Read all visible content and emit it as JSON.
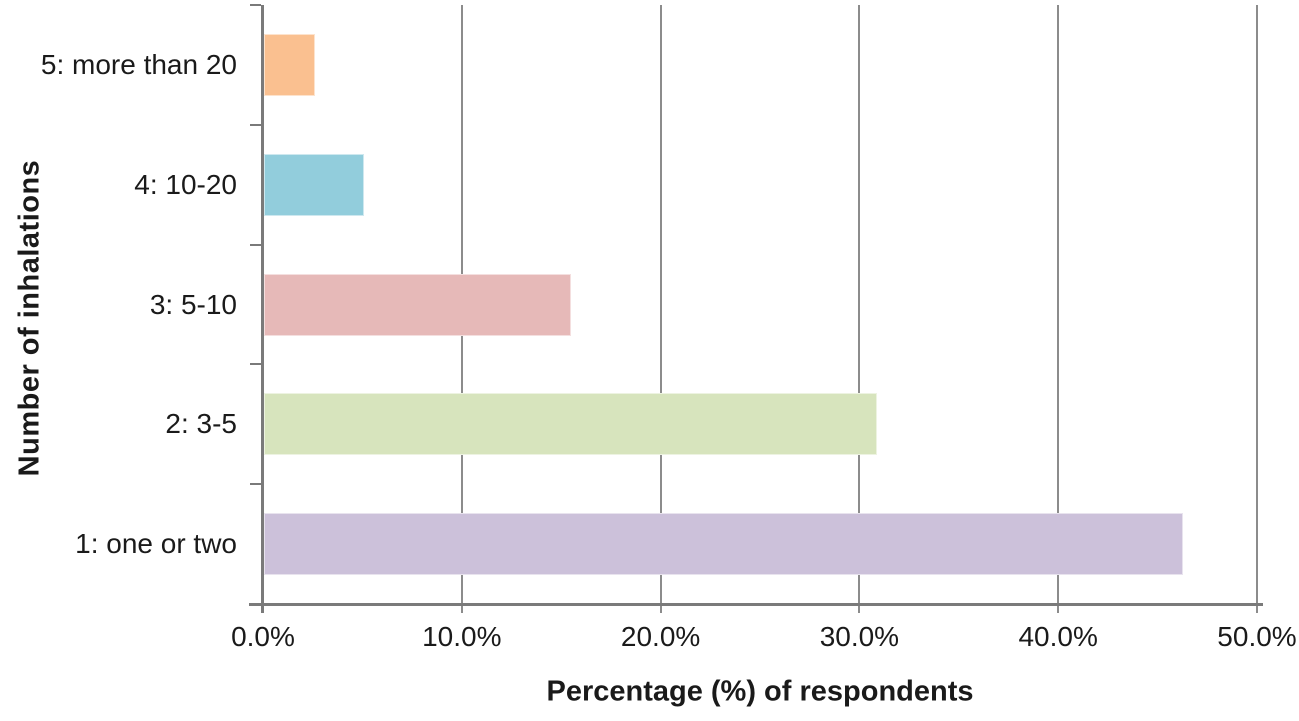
{
  "chart_data": {
    "type": "bar",
    "orientation": "horizontal",
    "title": "",
    "xlabel": "Percentage (%) of respondents",
    "ylabel": "Number of inhalations",
    "categories": [
      "5: more than 20",
      "4: 10-20",
      "3: 5-10",
      "2: 3-5",
      "1: one or two"
    ],
    "values": [
      2.6,
      5.1,
      15.5,
      30.9,
      46.3
    ],
    "bar_colors": [
      "#FAC090",
      "#92CDDC",
      "#E6B9B8",
      "#D7E4BD",
      "#CCC1DA"
    ],
    "xlim": [
      0,
      50
    ],
    "x_ticks": [
      {
        "value": 0,
        "label": "0.0%"
      },
      {
        "value": 10,
        "label": "10.0%"
      },
      {
        "value": 20,
        "label": "20.0%"
      },
      {
        "value": 30,
        "label": "30.0%"
      },
      {
        "value": 40,
        "label": "40.0%"
      },
      {
        "value": 50,
        "label": "50.0%"
      }
    ],
    "grid": "vertical-major",
    "legend": "none",
    "gridline_color": "#8C8C8C",
    "axis_color": "#7A7A7A",
    "text_color": "#1A1A1A"
  }
}
